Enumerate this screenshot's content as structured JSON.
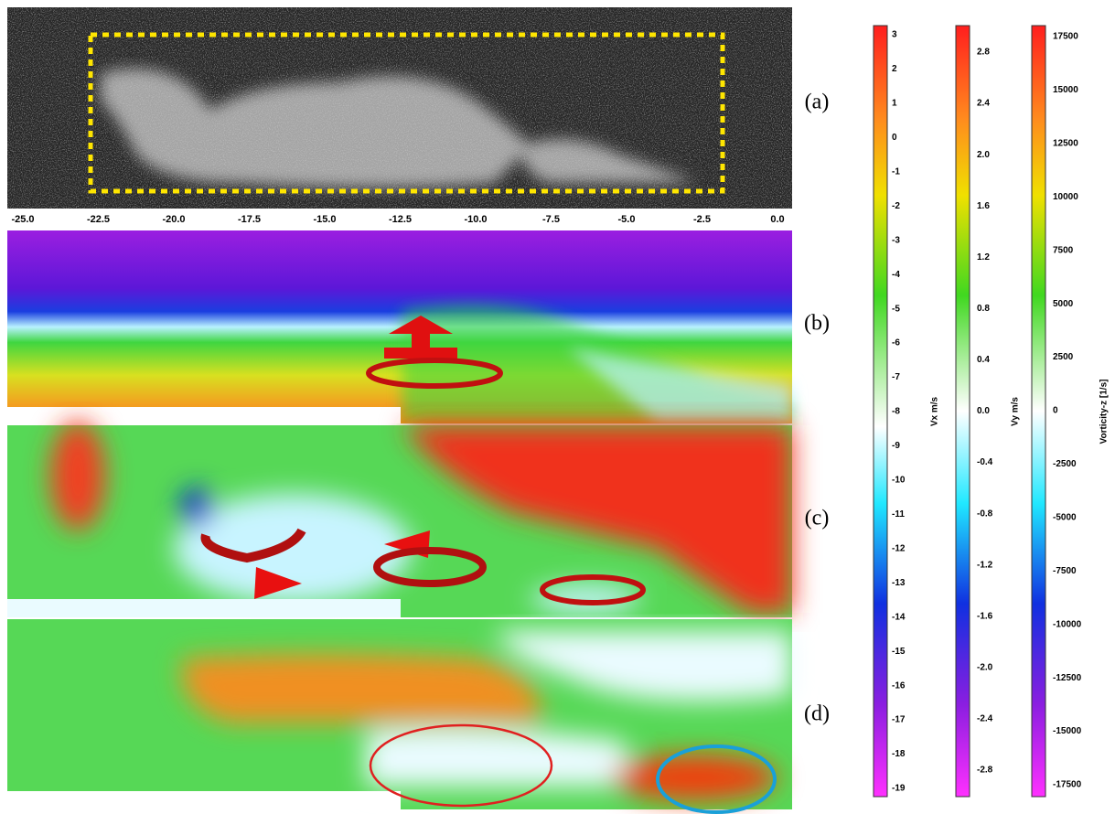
{
  "axis": {
    "ticks": [
      "-25.0",
      "-22.5",
      "-20.0",
      "-17.5",
      "-15.0",
      "-12.5",
      "-10.0",
      "-7.5",
      "-5.0",
      "-2.5",
      "0.0"
    ]
  },
  "panels": {
    "labels": [
      "(a)",
      "(b)",
      "(c)",
      "(d)"
    ]
  },
  "colorbars": [
    {
      "label": "Vx m/s",
      "ticks": [
        "3",
        "2",
        "1",
        "0",
        "-1",
        "-2",
        "-3",
        "-4",
        "-5",
        "-6",
        "-7",
        "-8",
        "-9",
        "-10",
        "-11",
        "-12",
        "-13",
        "-14",
        "-15",
        "-16",
        "-17",
        "-18",
        "-19"
      ]
    },
    {
      "label": "Vy m/s",
      "ticks": [
        "2.8",
        "2.4",
        "2.0",
        "1.6",
        "1.2",
        "0.8",
        "0.4",
        "0.0",
        "-0.4",
        "-0.8",
        "-1.2",
        "-1.6",
        "-2.0",
        "-2.4",
        "-2.8"
      ]
    },
    {
      "label": "Vorticity-z [1/s]",
      "ticks": [
        "17500",
        "15000",
        "12500",
        "10000",
        "7500",
        "5000",
        "2500",
        "0",
        "-2500",
        "-5000",
        "-7500",
        "-10000",
        "-12500",
        "-15000",
        "-17500"
      ]
    }
  ]
}
